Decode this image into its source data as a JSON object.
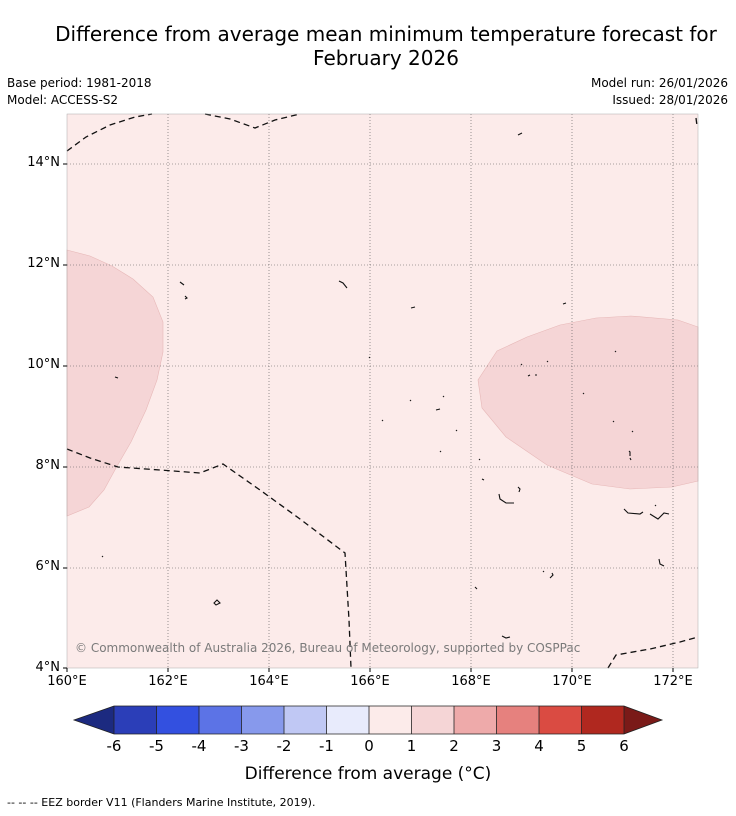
{
  "title": {
    "line1": "Difference from average mean minimum temperature forecast for",
    "line2": "February 2026"
  },
  "meta": {
    "base_period": "Base period: 1981-2018",
    "model": "Model: ACCESS-S2",
    "model_run": "Model run: 26/01/2026",
    "issued": "Issued: 28/01/2026"
  },
  "map": {
    "lat_labels": [
      "14°N",
      "12°N",
      "10°N",
      "8°N",
      "6°N",
      "4°N"
    ],
    "lon_labels": [
      "160°E",
      "162°E",
      "164°E",
      "166°E",
      "168°E",
      "170°E",
      "172°E"
    ],
    "copyright": "© Commonwealth of Australia 2026, Bureau of Meteorology, supported by COSPPac",
    "colors": {
      "background_fill": "#fcebea",
      "anomaly_fill": "#f5d5d6"
    }
  },
  "colorbar": {
    "tick_labels": [
      "-6",
      "-5",
      "-4",
      "-3",
      "-2",
      "-1",
      "0",
      "1",
      "2",
      "3",
      "4",
      "5",
      "6"
    ],
    "colors": [
      "#1c2a80",
      "#2b3eb8",
      "#3350e0",
      "#5c73e6",
      "#8799ec",
      "#c0c8f4",
      "#e8ebfc",
      "#fcebea",
      "#f5d5d6",
      "#eeaaaa",
      "#e6817e",
      "#da4b42",
      "#b0281f",
      "#7a1a18"
    ],
    "title": "Difference from average (°C)"
  },
  "footer": {
    "legend": "-- -- -- EEZ border V11 (Flanders Marine Institute, 2019)."
  }
}
